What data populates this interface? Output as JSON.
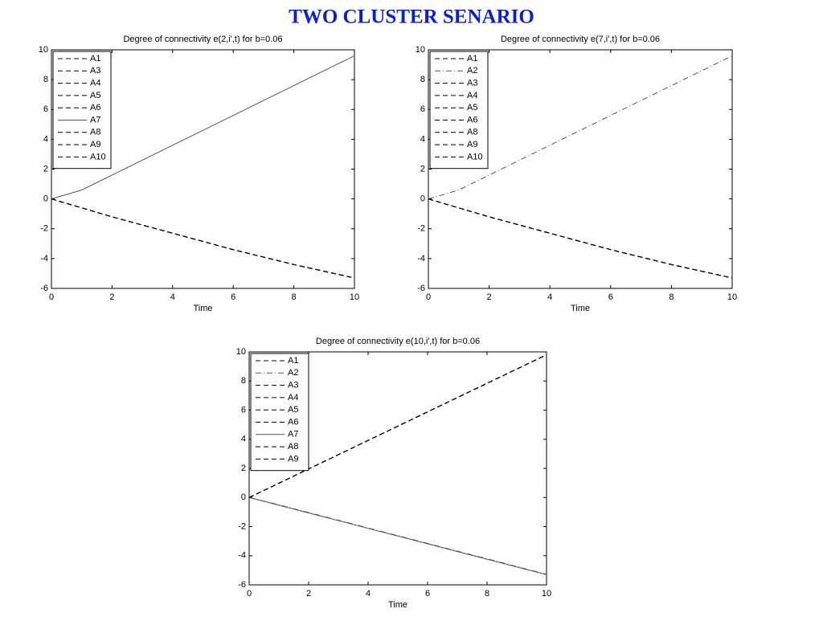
{
  "title": "TWO CLUSTER SENARIO",
  "chart_data": [
    {
      "type": "line",
      "title": "Degree of connectivity e(2,i',t) for b=0.06",
      "x_label": "Time",
      "x": [
        0,
        1,
        2,
        3,
        4,
        5,
        6,
        7,
        8,
        9,
        10
      ],
      "xlim": [
        0,
        10
      ],
      "xticks": [
        0,
        2,
        4,
        6,
        8,
        10
      ],
      "ylim": [
        -6,
        10
      ],
      "yticks": [
        -6,
        -4,
        -2,
        0,
        2,
        4,
        6,
        8,
        10
      ],
      "legend": "upper left",
      "series": [
        {
          "name": "A1",
          "color": "#000000",
          "style": "dashed",
          "values": [
            0,
            -0.6,
            -1.2,
            -1.75,
            -2.3,
            -2.85,
            -3.4,
            -3.9,
            -4.4,
            -4.85,
            -5.3
          ]
        },
        {
          "name": "A3",
          "color": "#000000",
          "style": "dashed",
          "values": [
            0,
            -0.6,
            -1.2,
            -1.75,
            -2.3,
            -2.85,
            -3.4,
            -3.9,
            -4.4,
            -4.85,
            -5.3
          ]
        },
        {
          "name": "A4",
          "color": "#000000",
          "style": "dashed",
          "values": [
            0,
            -0.6,
            -1.2,
            -1.75,
            -2.3,
            -2.85,
            -3.4,
            -3.9,
            -4.4,
            -4.85,
            -5.3
          ]
        },
        {
          "name": "A5",
          "color": "#000000",
          "style": "dashed",
          "values": [
            0,
            -0.6,
            -1.2,
            -1.75,
            -2.3,
            -2.85,
            -3.4,
            -3.9,
            -4.4,
            -4.85,
            -5.3
          ]
        },
        {
          "name": "A6",
          "color": "#000000",
          "style": "dashed",
          "values": [
            0,
            -0.6,
            -1.2,
            -1.75,
            -2.3,
            -2.85,
            -3.4,
            -3.9,
            -4.4,
            -4.85,
            -5.3
          ]
        },
        {
          "name": "A7",
          "color": "#555555",
          "style": "solid",
          "values": [
            0,
            0.6,
            1.6,
            2.6,
            3.6,
            4.6,
            5.6,
            6.6,
            7.6,
            8.6,
            9.6
          ]
        },
        {
          "name": "A8",
          "color": "#000000",
          "style": "dashed",
          "values": [
            0,
            -0.6,
            -1.2,
            -1.75,
            -2.3,
            -2.85,
            -3.4,
            -3.9,
            -4.4,
            -4.85,
            -5.3
          ]
        },
        {
          "name": "A9",
          "color": "#000000",
          "style": "dashed",
          "values": [
            0,
            -0.6,
            -1.2,
            -1.75,
            -2.3,
            -2.85,
            -3.4,
            -3.9,
            -4.4,
            -4.85,
            -5.3
          ]
        },
        {
          "name": "A10",
          "color": "#000000",
          "style": "dashed",
          "values": [
            0,
            -0.6,
            -1.2,
            -1.75,
            -2.3,
            -2.85,
            -3.4,
            -3.9,
            -4.4,
            -4.85,
            -5.3
          ]
        }
      ]
    },
    {
      "type": "line",
      "title": "Degree of connectivity e(7,i',t) for b=0.06",
      "x_label": "Time",
      "x": [
        0,
        1,
        2,
        3,
        4,
        5,
        6,
        7,
        8,
        9,
        10
      ],
      "xlim": [
        0,
        10
      ],
      "xticks": [
        0,
        2,
        4,
        6,
        8,
        10
      ],
      "ylim": [
        -6,
        10
      ],
      "yticks": [
        -6,
        -4,
        -2,
        0,
        2,
        4,
        6,
        8,
        10
      ],
      "legend": "upper left",
      "series": [
        {
          "name": "A1",
          "color": "#000000",
          "style": "dashed",
          "values": [
            0,
            -0.6,
            -1.2,
            -1.75,
            -2.3,
            -2.85,
            -3.4,
            -3.9,
            -4.4,
            -4.85,
            -5.3
          ]
        },
        {
          "name": "A2",
          "color": "#555555",
          "style": "dashdot",
          "values": [
            0,
            0.6,
            1.6,
            2.6,
            3.6,
            4.6,
            5.6,
            6.6,
            7.6,
            8.6,
            9.6
          ]
        },
        {
          "name": "A3",
          "color": "#000000",
          "style": "dashed",
          "values": [
            0,
            -0.6,
            -1.2,
            -1.75,
            -2.3,
            -2.85,
            -3.4,
            -3.9,
            -4.4,
            -4.85,
            -5.3
          ]
        },
        {
          "name": "A4",
          "color": "#000000",
          "style": "dashed",
          "values": [
            0,
            -0.6,
            -1.2,
            -1.75,
            -2.3,
            -2.85,
            -3.4,
            -3.9,
            -4.4,
            -4.85,
            -5.3
          ]
        },
        {
          "name": "A5",
          "color": "#000000",
          "style": "dashed",
          "values": [
            0,
            -0.6,
            -1.2,
            -1.75,
            -2.3,
            -2.85,
            -3.4,
            -3.9,
            -4.4,
            -4.85,
            -5.3
          ]
        },
        {
          "name": "A6",
          "color": "#000000",
          "style": "dashed",
          "values": [
            0,
            -0.6,
            -1.2,
            -1.75,
            -2.3,
            -2.85,
            -3.4,
            -3.9,
            -4.4,
            -4.85,
            -5.3
          ]
        },
        {
          "name": "A8",
          "color": "#000000",
          "style": "dashed",
          "values": [
            0,
            -0.6,
            -1.2,
            -1.75,
            -2.3,
            -2.85,
            -3.4,
            -3.9,
            -4.4,
            -4.85,
            -5.3
          ]
        },
        {
          "name": "A9",
          "color": "#000000",
          "style": "dashed",
          "values": [
            0,
            -0.6,
            -1.2,
            -1.75,
            -2.3,
            -2.85,
            -3.4,
            -3.9,
            -4.4,
            -4.85,
            -5.3
          ]
        },
        {
          "name": "A10",
          "color": "#000000",
          "style": "dashed",
          "values": [
            0,
            -0.6,
            -1.2,
            -1.75,
            -2.3,
            -2.85,
            -3.4,
            -3.9,
            -4.4,
            -4.85,
            -5.3
          ]
        }
      ]
    },
    {
      "type": "line",
      "title": "Degree of connectivity e(10,i',t) for b=0.06",
      "x_label": "Time",
      "x": [
        0,
        1,
        2,
        3,
        4,
        5,
        6,
        7,
        8,
        9,
        10
      ],
      "xlim": [
        0,
        10
      ],
      "xticks": [
        0,
        2,
        4,
        6,
        8,
        10
      ],
      "ylim": [
        -6,
        10
      ],
      "yticks": [
        -6,
        -4,
        -2,
        0,
        2,
        4,
        6,
        8,
        10
      ],
      "legend": "upper left",
      "series": [
        {
          "name": "A1",
          "color": "#000000",
          "style": "dashed",
          "values": [
            0,
            0.98,
            1.96,
            2.94,
            3.92,
            4.9,
            5.88,
            6.86,
            7.84,
            8.82,
            9.8
          ]
        },
        {
          "name": "A2",
          "color": "#555555",
          "style": "dashdot",
          "values": [
            0,
            -0.5,
            -1.03,
            -1.56,
            -2.09,
            -2.62,
            -3.15,
            -3.68,
            -4.21,
            -4.74,
            -5.27
          ]
        },
        {
          "name": "A3",
          "color": "#000000",
          "style": "dashed",
          "values": [
            0,
            0.98,
            1.96,
            2.94,
            3.92,
            4.9,
            5.88,
            6.86,
            7.84,
            8.82,
            9.8
          ]
        },
        {
          "name": "A4",
          "color": "#000000",
          "style": "dashed",
          "values": [
            0,
            0.98,
            1.96,
            2.94,
            3.92,
            4.9,
            5.88,
            6.86,
            7.84,
            8.82,
            9.8
          ]
        },
        {
          "name": "A5",
          "color": "#000000",
          "style": "dashed",
          "values": [
            0,
            0.98,
            1.96,
            2.94,
            3.92,
            4.9,
            5.88,
            6.86,
            7.84,
            8.82,
            9.8
          ]
        },
        {
          "name": "A6",
          "color": "#000000",
          "style": "dashed",
          "values": [
            0,
            0.98,
            1.96,
            2.94,
            3.92,
            4.9,
            5.88,
            6.86,
            7.84,
            8.82,
            9.8
          ]
        },
        {
          "name": "A7",
          "color": "#555555",
          "style": "solid",
          "values": [
            0,
            -0.53,
            -1.06,
            -1.59,
            -2.12,
            -2.65,
            -3.18,
            -3.71,
            -4.24,
            -4.77,
            -5.3
          ]
        },
        {
          "name": "A8",
          "color": "#000000",
          "style": "dashed",
          "values": [
            0,
            0.98,
            1.96,
            2.94,
            3.92,
            4.9,
            5.88,
            6.86,
            7.84,
            8.82,
            9.8
          ]
        },
        {
          "name": "A9",
          "color": "#000000",
          "style": "dashed",
          "values": [
            0,
            0.98,
            1.96,
            2.94,
            3.92,
            4.9,
            5.88,
            6.86,
            7.84,
            8.82,
            9.8
          ]
        }
      ]
    }
  ]
}
